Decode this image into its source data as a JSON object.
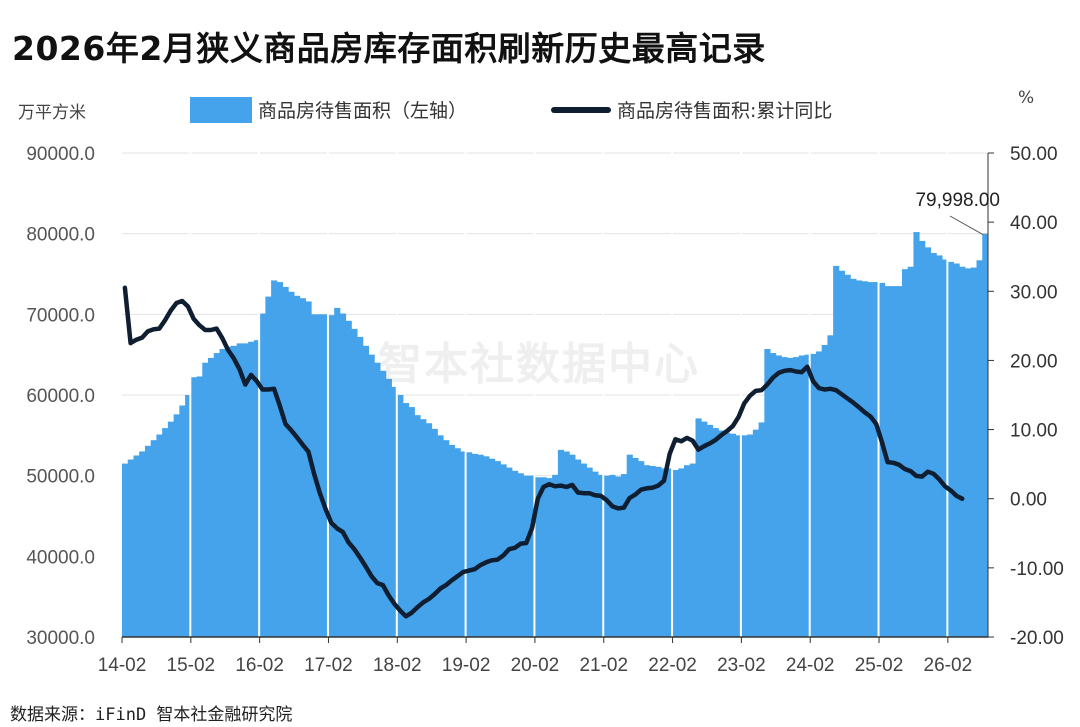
{
  "title": "2026年2月狭义商品房库存面积刷新历史最高记录",
  "left_unit": "万平方米",
  "right_unit": "%",
  "legend": {
    "bar_label": "商品房待售面积（左轴）",
    "line_label": "商品房待售面积:累计同比"
  },
  "watermark": "智本社数据中心",
  "source": "数据来源：iFinD 智本社金融研究院",
  "chart_data": {
    "type": "bar",
    "colors": {
      "bar": "#44a3eb",
      "line": "#0f1e31"
    },
    "x_ticks": [
      "14-02",
      "15-02",
      "16-02",
      "17-02",
      "18-02",
      "19-02",
      "20-02",
      "21-02",
      "22-02",
      "23-02",
      "24-02",
      "25-02",
      "26-02"
    ],
    "y_left_ticks": [
      "90000.0",
      "80000.0",
      "70000.0",
      "60000.0",
      "50000.0",
      "40000.0",
      "30000.0"
    ],
    "y_right_ticks": [
      "50.00",
      "40.00",
      "30.00",
      "20.00",
      "10.00",
      "0.00",
      "-10.00",
      "-20.00"
    ],
    "ylim_left": [
      30000,
      90000
    ],
    "ylim_right": [
      -20,
      50
    ],
    "annotation": "79,998.00",
    "grid": true,
    "series": [
      {
        "name": "商品房待售面积（左轴）",
        "type": "bar",
        "values": [
          51500,
          52000,
          52500,
          53000,
          53700,
          54400,
          55100,
          55900,
          56700,
          57600,
          58700,
          60000,
          62200,
          62300,
          64000,
          64600,
          65200,
          65700,
          66000,
          66100,
          66400,
          66400,
          66600,
          66800,
          70100,
          72200,
          74200,
          74000,
          73400,
          72800,
          72300,
          72000,
          71600,
          70000,
          70000,
          70000,
          69900,
          70800,
          70100,
          69200,
          68200,
          67200,
          66100,
          65000,
          64000,
          63000,
          62000,
          61000,
          60000,
          59000,
          58500,
          57500,
          57000,
          56500,
          55800,
          55000,
          54400,
          53800,
          53400,
          53000,
          52900,
          52700,
          52600,
          52400,
          52100,
          51800,
          51400,
          51000,
          50600,
          50300,
          50000,
          50000,
          49800,
          49800,
          49700,
          50100,
          53200,
          53000,
          52600,
          52000,
          51500,
          51000,
          50500,
          50100,
          50000,
          50100,
          49900,
          50200,
          52600,
          52200,
          51800,
          51300,
          51200,
          51100,
          50900,
          50900,
          50700,
          50900,
          51300,
          51500,
          57100,
          56700,
          56300,
          55900,
          55600,
          55300,
          55200,
          55000,
          55000,
          55100,
          55700,
          56600,
          65700,
          65200,
          64900,
          64700,
          64600,
          64700,
          64900,
          65000,
          65100,
          65400,
          66200,
          67400,
          76000,
          75400,
          74900,
          74400,
          74200,
          74100,
          74000,
          74000,
          73900,
          73500,
          73500,
          73500,
          75600,
          75900,
          80200,
          79100,
          78300,
          77600,
          77300,
          76800,
          76500,
          76300,
          75900,
          75700,
          75800,
          76700,
          80000
        ]
      },
      {
        "name": "商品房待售面积:累计同比",
        "type": "line",
        "values": [
          30.5,
          22.5,
          23,
          23.3,
          24.2,
          24.5,
          24.6,
          25.8,
          27.2,
          28.3,
          28.6,
          27.8,
          26,
          25.1,
          24.4,
          24.4,
          24.6,
          23.2,
          21.5,
          20.3,
          18.7,
          16.5,
          17.9,
          17,
          15.8,
          15.8,
          15.9,
          13.5,
          10.8,
          9.9,
          8.9,
          7.8,
          6.8,
          3.6,
          0.8,
          -1.5,
          -3.5,
          -4.3,
          -4.8,
          -6.3,
          -7.3,
          -8.5,
          -9.8,
          -11.2,
          -12.2,
          -12.5,
          -14,
          -15.2,
          -16.2,
          -17,
          -16.5,
          -15.7,
          -15,
          -14.5,
          -13.8,
          -13,
          -12.5,
          -11.8,
          -11.2,
          -10.6,
          -10.4,
          -10.2,
          -9.6,
          -9.2,
          -8.9,
          -8.8,
          -8.2,
          -7.3,
          -7.1,
          -6.5,
          -6.4,
          -4.2,
          0,
          1.7,
          2.1,
          1.8,
          1.9,
          1.7,
          2,
          0.9,
          0.8,
          0.8,
          0.5,
          0.4,
          -0.2,
          -1.1,
          -1.4,
          -1.3,
          0.1,
          0.6,
          1.3,
          1.5,
          1.6,
          1.9,
          2.6,
          6.5,
          8.6,
          8.3,
          8.8,
          8.4,
          7.1,
          7.6,
          8,
          8.5,
          9.2,
          9.8,
          10.5,
          11.8,
          13.8,
          14.9,
          15.6,
          15.7,
          16.5,
          17.5,
          18.2,
          18.5,
          18.6,
          18.4,
          18.3,
          19.1,
          17,
          16,
          15.8,
          15.9,
          15.7,
          15.1,
          14.5,
          13.9,
          13.2,
          12.5,
          11.9,
          10.8,
          8.2,
          5.3,
          5.2,
          4.9,
          4.3,
          4,
          3.3,
          3.2,
          3.9,
          3.6,
          2.8,
          1.8,
          1.2,
          0.4,
          0
        ]
      }
    ]
  }
}
